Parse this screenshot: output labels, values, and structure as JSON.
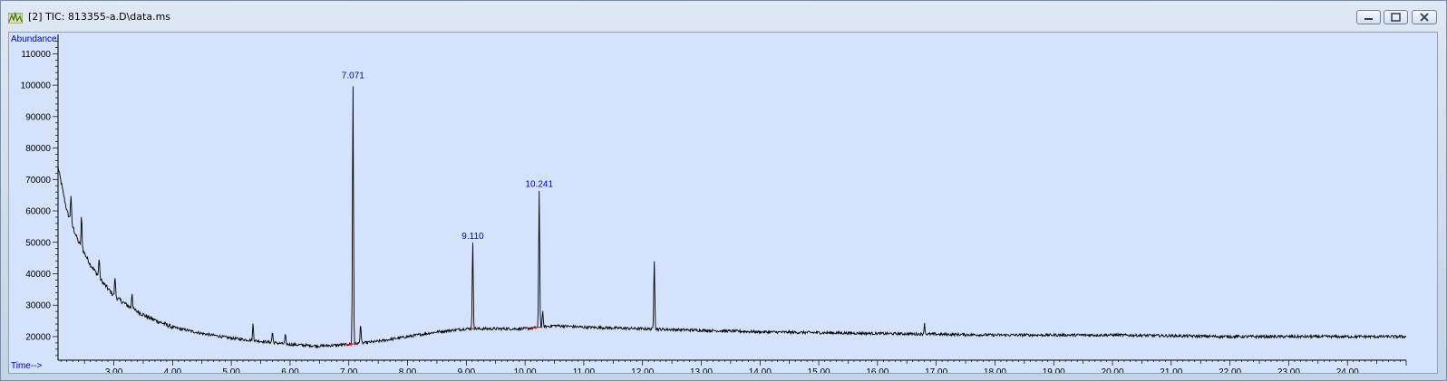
{
  "window": {
    "title": "[2] TIC: 813355-a.D\\data.ms",
    "icon": "chromatogram-icon",
    "buttons": [
      "minimize-icon",
      "restore-icon",
      "close-icon"
    ]
  },
  "chart_data": {
    "type": "line",
    "ylabel": "Abundance",
    "xlabel": "Time-->",
    "xlim": [
      2.05,
      25.0
    ],
    "ylim": [
      12500,
      115000
    ],
    "x_ticks": [
      "3.00",
      "4.00",
      "5.00",
      "6.00",
      "7.00",
      "8.00",
      "9.00",
      "10.00",
      "11.00",
      "12.00",
      "13.00",
      "14.00",
      "15.00",
      "16.00",
      "17.00",
      "18.00",
      "19.00",
      "20.00",
      "21.00",
      "22.00",
      "23.00",
      "24.00"
    ],
    "y_ticks": [
      "20000",
      "30000",
      "40000",
      "50000",
      "60000",
      "70000",
      "80000",
      "90000",
      "100000",
      "110000"
    ],
    "grid": false,
    "baseline": [
      [
        2.05,
        74000
      ],
      [
        2.2,
        60000
      ],
      [
        2.4,
        50000
      ],
      [
        2.6,
        43000
      ],
      [
        2.8,
        37500
      ],
      [
        3.0,
        33000
      ],
      [
        3.3,
        29000
      ],
      [
        3.6,
        26000
      ],
      [
        4.0,
        23000
      ],
      [
        4.5,
        21000
      ],
      [
        5.0,
        19500
      ],
      [
        5.5,
        18500
      ],
      [
        6.0,
        17500
      ],
      [
        6.5,
        17000
      ],
      [
        7.0,
        17500
      ],
      [
        7.5,
        18500
      ],
      [
        8.0,
        20000
      ],
      [
        8.5,
        21500
      ],
      [
        9.0,
        22500
      ],
      [
        10.0,
        22500
      ],
      [
        10.5,
        23500
      ],
      [
        11.0,
        23000
      ],
      [
        12.0,
        22500
      ],
      [
        13.0,
        22000
      ],
      [
        14.0,
        21500
      ],
      [
        16.0,
        21000
      ],
      [
        18.0,
        20500
      ],
      [
        20.0,
        20500
      ],
      [
        22.0,
        20000
      ],
      [
        24.0,
        20000
      ],
      [
        25.0,
        20000
      ]
    ],
    "peaks": [
      {
        "rt": 2.27,
        "height": 65000
      },
      {
        "rt": 2.45,
        "height": 58000
      },
      {
        "rt": 2.75,
        "height": 45000
      },
      {
        "rt": 3.02,
        "height": 39000
      },
      {
        "rt": 3.31,
        "height": 34000
      },
      {
        "rt": 5.37,
        "height": 24000
      },
      {
        "rt": 5.7,
        "height": 21500
      },
      {
        "rt": 5.92,
        "height": 20500
      },
      {
        "rt": 7.071,
        "height": 101000
      },
      {
        "rt": 7.2,
        "height": 24000
      },
      {
        "rt": 9.11,
        "height": 50000
      },
      {
        "rt": 10.241,
        "height": 66500
      },
      {
        "rt": 10.3,
        "height": 28000
      },
      {
        "rt": 12.2,
        "height": 44500
      },
      {
        "rt": 16.8,
        "height": 24000
      }
    ],
    "annotations": [
      {
        "text": "7.071",
        "x": 7.071,
        "y": 101000
      },
      {
        "text": "9.110",
        "x": 9.11,
        "y": 50000
      },
      {
        "text": "10.241",
        "x": 10.241,
        "y": 66500
      }
    ],
    "integration_marks": [
      {
        "start": 6.95,
        "end": 7.15
      },
      {
        "start": 9.05,
        "end": 9.2
      },
      {
        "start": 10.1,
        "end": 10.3
      }
    ],
    "colors": {
      "trace": "#000000",
      "labels": "#0000cc",
      "background": "#d5e2fb",
      "integration": "#ff0000"
    }
  }
}
